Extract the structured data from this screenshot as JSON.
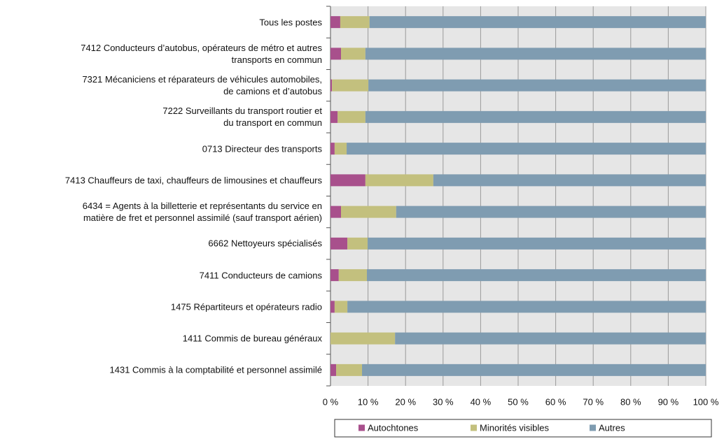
{
  "chart_data": {
    "type": "stacked_bar_horizontal",
    "categories": [
      "Tous les postes",
      "7412 Conducteurs d’autobus, opérateurs de métro et autres\ntransports en commun",
      "7321 Mécaniciens et réparateurs de véhicules automobiles,\nde camions et d’autobus",
      "7222 Surveillants du transport routier et\ndu transport en commun",
      "0713 Directeur des transports",
      "7413 Chauffeurs de taxi, chauffeurs de limousines et chauffeurs",
      "6434 = Agents à la billetterie et représentants du service en\nmatière de fret et personnel assimilé (sauf transport aérien)",
      "6662 Nettoyeurs spécialisés",
      "7411 Conducteurs de camions",
      "1475 Répartiteurs et opérateurs radio",
      "1411 Commis de bureau généraux",
      "1431 Commis à la comptabilité et personnel assimilé"
    ],
    "series": [
      {
        "name": "Autochtones",
        "color": "#a8508c",
        "values": [
          2.6,
          2.8,
          0.4,
          1.9,
          1.1,
          9.3,
          2.8,
          4.5,
          2.2,
          1.1,
          0,
          1.5
        ]
      },
      {
        "name": "Minorités visibles",
        "color": "#c3c07e",
        "values": [
          7.8,
          6.5,
          9.7,
          7.4,
          3.2,
          18.1,
          14.7,
          5.4,
          7.5,
          3.4,
          17.2,
          6.9
        ]
      },
      {
        "name": "Autres",
        "color": "#7f9cb1",
        "values": [
          89.6,
          90.7,
          89.9,
          90.7,
          95.7,
          72.6,
          82.5,
          90.1,
          90.3,
          95.5,
          82.8,
          91.6
        ]
      }
    ],
    "xlim": [
      0,
      100
    ],
    "xticks": [
      {
        "value": 0,
        "label": "0 %"
      },
      {
        "value": 10,
        "label": "10 %"
      },
      {
        "value": 20,
        "label": "20 %"
      },
      {
        "value": 30,
        "label": "30 %"
      },
      {
        "value": 40,
        "label": "40 %"
      },
      {
        "value": 50,
        "label": "50 %"
      },
      {
        "value": 60,
        "label": "60 %"
      },
      {
        "value": 70,
        "label": "70 %"
      },
      {
        "value": 80,
        "label": "80 %"
      },
      {
        "value": 90,
        "label": "90 %"
      },
      {
        "value": 100,
        "label": "100 %"
      }
    ],
    "grid": true,
    "legend": "bottom"
  }
}
